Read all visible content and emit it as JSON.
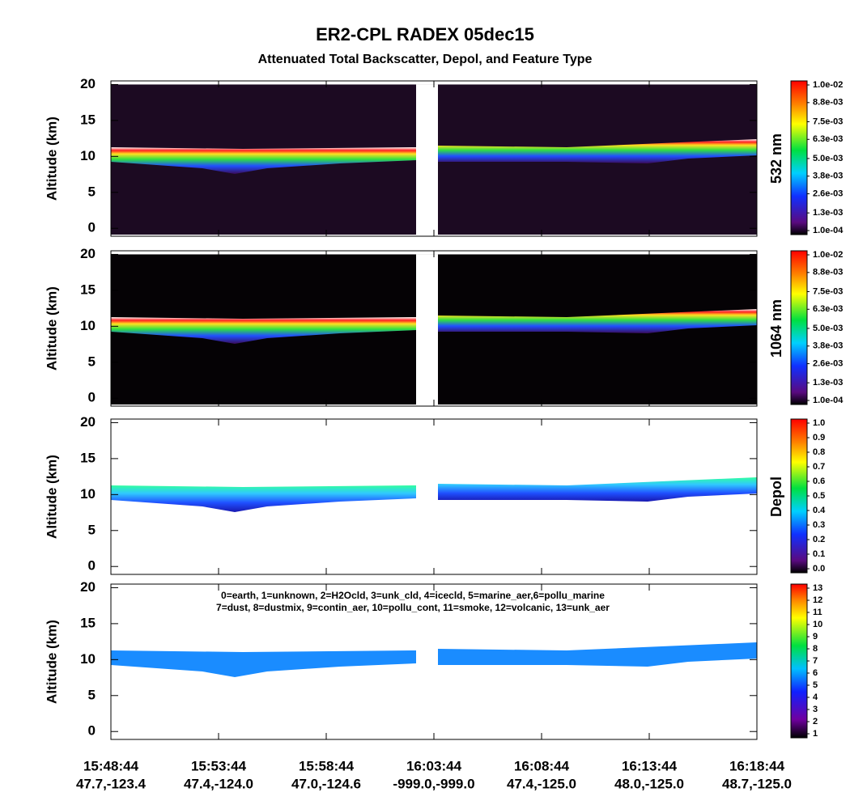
{
  "title": "ER2-CPL RADEX 05dec15",
  "subtitle": "Attenuated Total Backscatter, Depol, and Feature Type",
  "x_labels": [
    {
      "time": "15:48:44",
      "location": "47.7,-123.4"
    },
    {
      "time": "15:53:44",
      "location": "47.4,-124.0"
    },
    {
      "time": "15:58:44",
      "location": "47.0,-124.6"
    },
    {
      "time": "16:03:44",
      "location": "-999.0,-999.0"
    },
    {
      "time": "16:08:44",
      "location": "47.4,-125.0"
    },
    {
      "time": "16:13:44",
      "location": "48.0,-125.0"
    },
    {
      "time": "16:18:44",
      "location": "48.7,-125.0"
    }
  ],
  "chart_data": [
    {
      "type": "heatmap",
      "ylabel": "Altitude (km)",
      "ylim": [
        -1.1,
        20.5
      ],
      "yticks": [
        0,
        5,
        10,
        15,
        20
      ],
      "colorbar_label": "532 nm",
      "colorbar_lim": [
        0.0001,
        0.01
      ],
      "colorbar_ticks": [
        {
          "value": 0.0001,
          "label": "1.0e-04"
        },
        {
          "value": 0.0013,
          "label": "1.3e-03"
        },
        {
          "value": 0.0026,
          "label": "2.6e-03"
        },
        {
          "value": 0.0038,
          "label": "3.8e-03"
        },
        {
          "value": 0.005,
          "label": "5.0e-03"
        },
        {
          "value": 0.0063,
          "label": "6.3e-03"
        },
        {
          "value": 0.0075,
          "label": "7.5e-03"
        },
        {
          "value": 0.0088,
          "label": "8.8e-03"
        },
        {
          "value": 0.01,
          "label": "1.0e-02"
        }
      ]
    },
    {
      "type": "heatmap",
      "ylabel": "Altitude (km)",
      "ylim": [
        -1.1,
        20.5
      ],
      "yticks": [
        0,
        5,
        10,
        15,
        20
      ],
      "colorbar_label": "1064 nm",
      "colorbar_lim": [
        0.0001,
        0.01
      ],
      "colorbar_ticks": [
        {
          "value": 0.0001,
          "label": "1.0e-04"
        },
        {
          "value": 0.0013,
          "label": "1.3e-03"
        },
        {
          "value": 0.0026,
          "label": "2.6e-03"
        },
        {
          "value": 0.0038,
          "label": "3.8e-03"
        },
        {
          "value": 0.005,
          "label": "5.0e-03"
        },
        {
          "value": 0.0063,
          "label": "6.3e-03"
        },
        {
          "value": 0.0075,
          "label": "7.5e-03"
        },
        {
          "value": 0.0088,
          "label": "8.8e-03"
        },
        {
          "value": 0.01,
          "label": "1.0e-02"
        }
      ]
    },
    {
      "type": "heatmap",
      "ylabel": "Altitude (km)",
      "ylim": [
        -1.1,
        20.5
      ],
      "yticks": [
        0,
        5,
        10,
        15,
        20
      ],
      "colorbar_label": "Depol",
      "colorbar_lim": [
        0,
        1
      ],
      "colorbar_ticks": [
        {
          "value": 0,
          "label": "0.0"
        },
        0.1,
        0.2,
        0.3,
        0.4,
        0.5,
        0.6,
        0.7,
        0.8,
        0.9,
        {
          "value": 1,
          "label": "1.0"
        }
      ]
    },
    {
      "type": "heatmap",
      "ylabel": "Altitude (km)",
      "ylim": [
        -1.1,
        20.5
      ],
      "yticks": [
        0,
        5,
        10,
        15,
        20
      ],
      "colorbar_lim": [
        1,
        13
      ],
      "colorbar_ticks": [
        1,
        2,
        3,
        4,
        5,
        6,
        7,
        8,
        9,
        10,
        11,
        12,
        13
      ],
      "legend_lines": [
        "0=earth, 1=unknown, 2=H2Ocld, 3=unk_cld, 4=icecld, 5=marine_aer,6=pollu_marine",
        "7=dust, 8=dustmix, 9=contin_aer, 10=pollu_cont, 11=smoke, 12=volcanic, 13=unk_aer"
      ]
    }
  ]
}
